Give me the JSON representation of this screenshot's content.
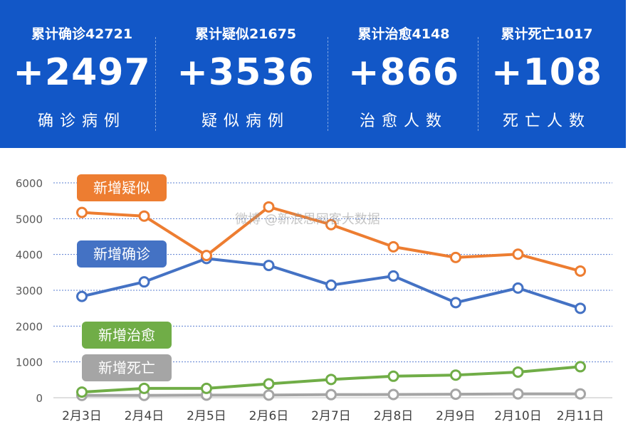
{
  "summary": [
    {
      "cumulative": "累计确诊42721",
      "increase": "+2497",
      "label": "确诊病例"
    },
    {
      "cumulative": "累计疑似21675",
      "increase": "+3536",
      "label": "疑似病例"
    },
    {
      "cumulative": "累计治愈4148",
      "increase": "+866",
      "label": "治愈人数"
    },
    {
      "cumulative": "累计死亡1017",
      "increase": "+108",
      "label": "死亡人数"
    }
  ],
  "watermark": "微博 @新浪思网客大数据",
  "colors": {
    "banner": "#1257c7",
    "suspected": "#ed7d31",
    "confirmed": "#4472c4",
    "cured": "#70ad47",
    "deaths": "#a5a5a5"
  },
  "chart_data": {
    "type": "line",
    "x": [
      "2月3日",
      "2月4日",
      "2月5日",
      "2月6日",
      "2月7日",
      "2月8日",
      "2月9日",
      "2月10日",
      "2月11日"
    ],
    "ylim": [
      0,
      6000
    ],
    "yticks": [
      "0",
      "1000",
      "2000",
      "3000",
      "4000",
      "5000",
      "6000"
    ],
    "grid": true,
    "series": [
      {
        "name": "新增疑似",
        "values": [
          5173,
          5072,
          3971,
          5328,
          4833,
          4214,
          3916,
          4008,
          3536
        ]
      },
      {
        "name": "新增确诊",
        "values": [
          2829,
          3235,
          3887,
          3694,
          3143,
          3399,
          2656,
          3062,
          2497
        ]
      },
      {
        "name": "新增治愈",
        "values": [
          157,
          262,
          261,
          387,
          510,
          600,
          632,
          716,
          866
        ]
      },
      {
        "name": "新增死亡",
        "values": [
          64,
          65,
          73,
          73,
          86,
          89,
          97,
          108,
          108
        ]
      }
    ]
  }
}
